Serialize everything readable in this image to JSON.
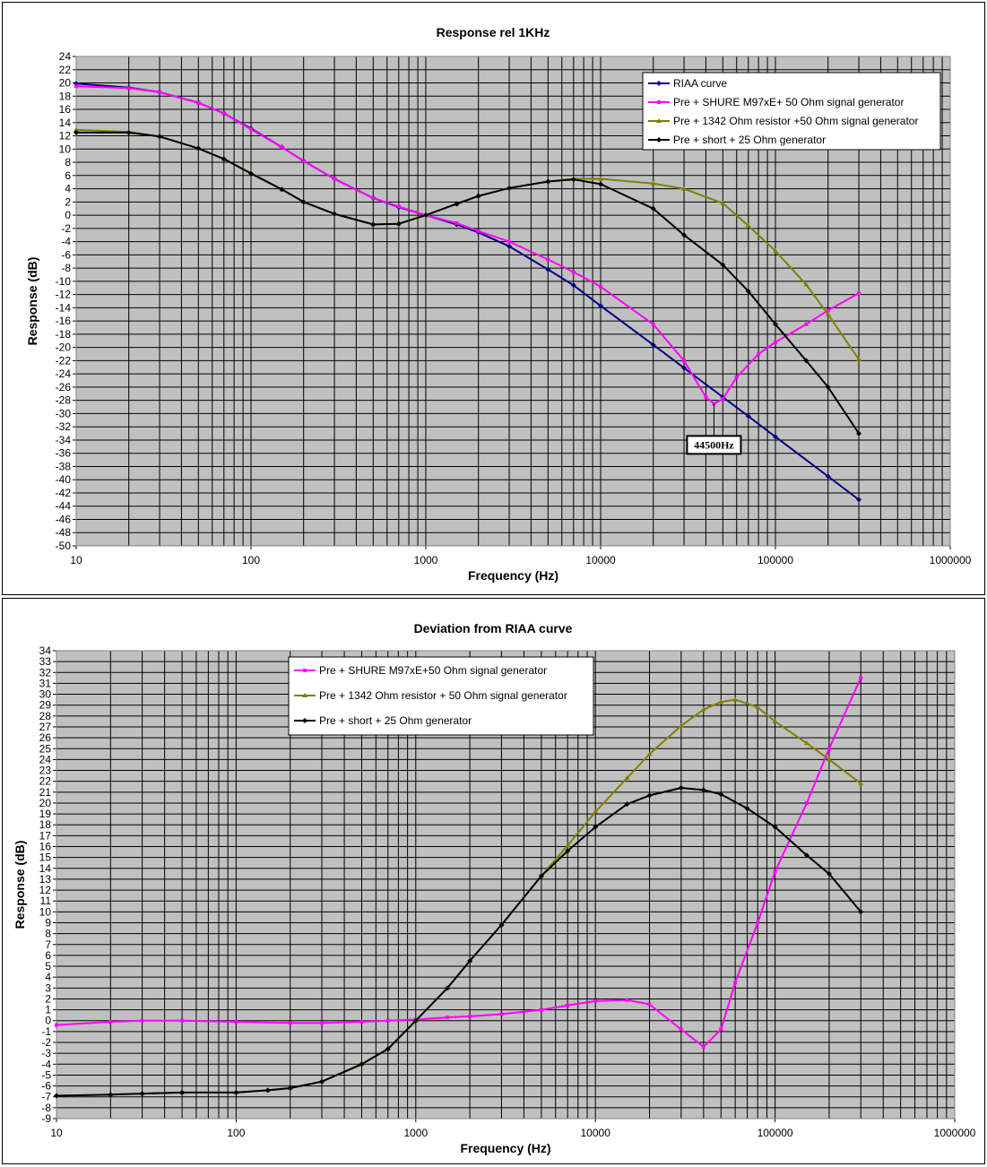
{
  "chart_data": [
    {
      "type": "line",
      "title": "Response rel 1KHz",
      "xlabel": "Frequency (Hz)",
      "ylabel": "Response (dB)",
      "xscale": "log",
      "xlim": [
        10,
        1000000
      ],
      "ylim": [
        -50,
        24
      ],
      "ystep": 2,
      "xtick_labels": [
        "10",
        "100",
        "1000",
        "10000",
        "100000",
        "1000000"
      ],
      "grid": true,
      "legend_position": "top-right",
      "annotation": {
        "text": "44500Hz",
        "x": 44500,
        "y": -28.5
      },
      "series": [
        {
          "name": "RIAA curve",
          "color": "#000080",
          "marker": "diamond",
          "points": [
            [
              10,
              19.9
            ],
            [
              20,
              19.3
            ],
            [
              30,
              18.6
            ],
            [
              50,
              17.0
            ],
            [
              70,
              15.4
            ],
            [
              100,
              13.1
            ],
            [
              150,
              10.3
            ],
            [
              200,
              8.2
            ],
            [
              300,
              5.5
            ],
            [
              500,
              2.6
            ],
            [
              700,
              1.2
            ],
            [
              1000,
              0.0
            ],
            [
              1500,
              -1.4
            ],
            [
              2000,
              -2.6
            ],
            [
              3000,
              -4.7
            ],
            [
              5000,
              -8.2
            ],
            [
              7000,
              -10.6
            ],
            [
              10000,
              -13.7
            ],
            [
              20000,
              -19.6
            ],
            [
              30000,
              -23.1
            ],
            [
              50000,
              -27.5
            ],
            [
              70000,
              -30.4
            ],
            [
              100000,
              -33.5
            ],
            [
              200000,
              -39.5
            ],
            [
              300000,
              -43.0
            ]
          ]
        },
        {
          "name": "Pre + SHURE M97xE+ 50 Ohm signal generator",
          "color": "#ff00ff",
          "marker": "square",
          "points": [
            [
              10,
              19.5
            ],
            [
              20,
              19.2
            ],
            [
              30,
              18.6
            ],
            [
              50,
              17.0
            ],
            [
              70,
              15.4
            ],
            [
              100,
              13.0
            ],
            [
              150,
              10.3
            ],
            [
              200,
              8.2
            ],
            [
              300,
              5.5
            ],
            [
              500,
              2.6
            ],
            [
              700,
              1.3
            ],
            [
              1000,
              0.0
            ],
            [
              1500,
              -1.2
            ],
            [
              2000,
              -2.4
            ],
            [
              3000,
              -4.0
            ],
            [
              5000,
              -6.7
            ],
            [
              7000,
              -8.6
            ],
            [
              10000,
              -10.8
            ],
            [
              20000,
              -16.5
            ],
            [
              30000,
              -22.0
            ],
            [
              40000,
              -27.5
            ],
            [
              44500,
              -28.5
            ],
            [
              50000,
              -27.8
            ],
            [
              60000,
              -24.5
            ],
            [
              80000,
              -21.0
            ],
            [
              100000,
              -19.2
            ],
            [
              150000,
              -16.5
            ],
            [
              200000,
              -14.4
            ],
            [
              300000,
              -11.8
            ]
          ]
        },
        {
          "name": "Pre + 1342 Ohm resistor +50 Ohm signal generator",
          "color": "#808000",
          "marker": "triangle",
          "points": [
            [
              10,
              12.9
            ],
            [
              20,
              12.6
            ],
            [
              30,
              11.9
            ],
            [
              50,
              10.1
            ],
            [
              70,
              8.5
            ],
            [
              100,
              6.4
            ],
            [
              150,
              3.9
            ],
            [
              200,
              2.0
            ],
            [
              300,
              0.2
            ],
            [
              500,
              -1.4
            ],
            [
              700,
              -1.3
            ],
            [
              1000,
              0.0
            ],
            [
              1500,
              1.7
            ],
            [
              2000,
              2.9
            ],
            [
              3000,
              4.1
            ],
            [
              5000,
              5.1
            ],
            [
              7000,
              5.5
            ],
            [
              10000,
              5.5
            ],
            [
              20000,
              4.8
            ],
            [
              30000,
              4.0
            ],
            [
              50000,
              1.8
            ],
            [
              70000,
              -1.6
            ],
            [
              100000,
              -5.4
            ],
            [
              150000,
              -10.5
            ],
            [
              200000,
              -15.0
            ],
            [
              300000,
              -21.8
            ]
          ]
        },
        {
          "name": "Pre + short + 25 Ohm generator",
          "color": "#000000",
          "marker": "diamond",
          "points": [
            [
              10,
              12.5
            ],
            [
              20,
              12.5
            ],
            [
              30,
              11.9
            ],
            [
              50,
              10.1
            ],
            [
              70,
              8.5
            ],
            [
              100,
              6.3
            ],
            [
              150,
              3.9
            ],
            [
              200,
              2.0
            ],
            [
              300,
              0.2
            ],
            [
              500,
              -1.4
            ],
            [
              700,
              -1.3
            ],
            [
              1000,
              0.0
            ],
            [
              1500,
              1.7
            ],
            [
              2000,
              2.9
            ],
            [
              3000,
              4.1
            ],
            [
              5000,
              5.1
            ],
            [
              7000,
              5.4
            ],
            [
              10000,
              4.7
            ],
            [
              20000,
              1.0
            ],
            [
              30000,
              -3.0
            ],
            [
              50000,
              -7.5
            ],
            [
              70000,
              -11.5
            ],
            [
              100000,
              -16.5
            ],
            [
              150000,
              -22.0
            ],
            [
              200000,
              -26.0
            ],
            [
              300000,
              -33.0
            ]
          ]
        }
      ]
    },
    {
      "type": "line",
      "title": "Deviation from RIAA curve",
      "xlabel": "Frequency (Hz)",
      "ylabel": "Response (dB)",
      "xscale": "log",
      "xlim": [
        10,
        1000000
      ],
      "ylim": [
        -9,
        34
      ],
      "ystep": 1,
      "xtick_labels": [
        "10",
        "100",
        "1000",
        "10000",
        "100000",
        "1000000"
      ],
      "grid": true,
      "legend_position": "top-center",
      "series": [
        {
          "name": "Pre + SHURE M97xE+50 Ohm signal generator",
          "color": "#ff00ff",
          "marker": "square",
          "points": [
            [
              10,
              -0.4
            ],
            [
              20,
              -0.1
            ],
            [
              30,
              0.0
            ],
            [
              50,
              0.0
            ],
            [
              100,
              -0.1
            ],
            [
              200,
              -0.2
            ],
            [
              300,
              -0.2
            ],
            [
              500,
              -0.1
            ],
            [
              700,
              0.0
            ],
            [
              1000,
              0.1
            ],
            [
              1500,
              0.3
            ],
            [
              2000,
              0.4
            ],
            [
              3000,
              0.6
            ],
            [
              5000,
              1.0
            ],
            [
              7000,
              1.4
            ],
            [
              10000,
              1.8
            ],
            [
              15000,
              1.9
            ],
            [
              20000,
              1.5
            ],
            [
              30000,
              -0.8
            ],
            [
              40000,
              -2.4
            ],
            [
              50000,
              -0.8
            ],
            [
              60000,
              3.5
            ],
            [
              80000,
              9.0
            ],
            [
              100000,
              13.7
            ],
            [
              150000,
              20.0
            ],
            [
              200000,
              25.0
            ],
            [
              300000,
              31.5
            ]
          ]
        },
        {
          "name": "Pre + 1342 Ohm resistor + 50 Ohm signal generator",
          "color": "#808000",
          "marker": "triangle",
          "points": [
            [
              10,
              -6.9
            ],
            [
              20,
              -6.8
            ],
            [
              30,
              -6.7
            ],
            [
              50,
              -6.6
            ],
            [
              100,
              -6.6
            ],
            [
              150,
              -6.4
            ],
            [
              200,
              -6.2
            ],
            [
              300,
              -5.6
            ],
            [
              500,
              -4.0
            ],
            [
              700,
              -2.6
            ],
            [
              1000,
              0.0
            ],
            [
              1500,
              3.0
            ],
            [
              2000,
              5.5
            ],
            [
              3000,
              8.8
            ],
            [
              5000,
              13.3
            ],
            [
              7000,
              16.1
            ],
            [
              10000,
              19.2
            ],
            [
              15000,
              22.3
            ],
            [
              20000,
              24.5
            ],
            [
              30000,
              27.1
            ],
            [
              40000,
              28.6
            ],
            [
              50000,
              29.3
            ],
            [
              60000,
              29.5
            ],
            [
              80000,
              28.8
            ],
            [
              100000,
              27.5
            ],
            [
              150000,
              25.5
            ],
            [
              200000,
              24.0
            ],
            [
              300000,
              21.8
            ]
          ]
        },
        {
          "name": "Pre + short + 25 Ohm generator",
          "color": "#000000",
          "marker": "diamond",
          "points": [
            [
              10,
              -6.9
            ],
            [
              20,
              -6.8
            ],
            [
              30,
              -6.7
            ],
            [
              50,
              -6.6
            ],
            [
              100,
              -6.6
            ],
            [
              150,
              -6.4
            ],
            [
              200,
              -6.2
            ],
            [
              300,
              -5.6
            ],
            [
              500,
              -4.0
            ],
            [
              700,
              -2.6
            ],
            [
              1000,
              0.0
            ],
            [
              1500,
              3.0
            ],
            [
              2000,
              5.5
            ],
            [
              3000,
              8.8
            ],
            [
              5000,
              13.3
            ],
            [
              7000,
              15.6
            ],
            [
              10000,
              17.8
            ],
            [
              15000,
              19.9
            ],
            [
              20000,
              20.7
            ],
            [
              30000,
              21.4
            ],
            [
              40000,
              21.2
            ],
            [
              50000,
              20.8
            ],
            [
              70000,
              19.5
            ],
            [
              100000,
              17.8
            ],
            [
              150000,
              15.2
            ],
            [
              200000,
              13.5
            ],
            [
              300000,
              10.0
            ]
          ]
        }
      ]
    }
  ]
}
